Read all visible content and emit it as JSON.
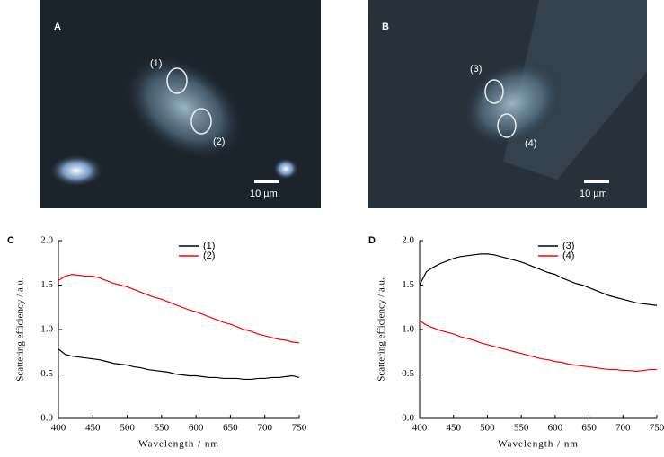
{
  "images": [
    {
      "panel_label": "A",
      "regions": [
        "(1)",
        "(2)"
      ],
      "scale_bar": "10 µm"
    },
    {
      "panel_label": "B",
      "regions": [
        "(3)",
        "(4)"
      ],
      "scale_bar": "10 µm"
    }
  ],
  "chart_data": [
    {
      "type": "line",
      "panel_label": "C",
      "x_label": "Wavelength / nm",
      "y_label": "Scattering efficiency / a.u.",
      "x": [
        400,
        410,
        420,
        430,
        440,
        450,
        460,
        470,
        480,
        490,
        500,
        510,
        520,
        530,
        540,
        550,
        560,
        570,
        580,
        590,
        600,
        610,
        620,
        630,
        640,
        650,
        660,
        670,
        680,
        690,
        700,
        710,
        720,
        730,
        740,
        750
      ],
      "xlim": [
        400,
        750
      ],
      "xticks": [
        400,
        450,
        500,
        550,
        600,
        650,
        700,
        750
      ],
      "ylim": [
        0,
        2
      ],
      "yticks": [
        {
          "value": 0,
          "label": "0.0"
        },
        {
          "value": 0.5,
          "label": "0.5"
        },
        {
          "value": 1,
          "label": "1.0"
        },
        {
          "value": 1.5,
          "label": "1.5"
        },
        {
          "value": 2,
          "label": "2.0"
        }
      ],
      "series": [
        {
          "name": "(1)",
          "color": "#000000",
          "values": [
            0.78,
            0.72,
            0.7,
            0.69,
            0.68,
            0.67,
            0.66,
            0.64,
            0.62,
            0.61,
            0.6,
            0.58,
            0.57,
            0.55,
            0.54,
            0.53,
            0.52,
            0.5,
            0.49,
            0.48,
            0.48,
            0.47,
            0.46,
            0.46,
            0.45,
            0.45,
            0.45,
            0.44,
            0.44,
            0.45,
            0.45,
            0.46,
            0.46,
            0.47,
            0.48,
            0.46
          ]
        },
        {
          "name": "(2)",
          "color": "#ff0000",
          "values": [
            1.55,
            1.6,
            1.62,
            1.61,
            1.6,
            1.6,
            1.58,
            1.55,
            1.52,
            1.5,
            1.48,
            1.45,
            1.42,
            1.39,
            1.36,
            1.34,
            1.31,
            1.28,
            1.25,
            1.22,
            1.2,
            1.17,
            1.14,
            1.11,
            1.08,
            1.06,
            1.03,
            1.0,
            0.98,
            0.95,
            0.93,
            0.91,
            0.89,
            0.88,
            0.86,
            0.85
          ]
        }
      ]
    },
    {
      "type": "line",
      "panel_label": "D",
      "x_label": "Wavelength / nm",
      "y_label": "Scattering efficiency / a.u.",
      "x": [
        400,
        410,
        420,
        430,
        440,
        450,
        460,
        470,
        480,
        490,
        500,
        510,
        520,
        530,
        540,
        550,
        560,
        570,
        580,
        590,
        600,
        610,
        620,
        630,
        640,
        650,
        660,
        670,
        680,
        690,
        700,
        710,
        720,
        730,
        740,
        750
      ],
      "xlim": [
        400,
        750
      ],
      "xticks": [
        400,
        450,
        500,
        550,
        600,
        650,
        700,
        750
      ],
      "ylim": [
        0,
        2
      ],
      "yticks": [
        {
          "value": 0,
          "label": "0.0"
        },
        {
          "value": 0.5,
          "label": "0.5"
        },
        {
          "value": 1,
          "label": "1.0"
        },
        {
          "value": 1.5,
          "label": "1.5"
        },
        {
          "value": 2,
          "label": "2.0"
        }
      ],
      "series": [
        {
          "name": "(3)",
          "color": "#000000",
          "values": [
            1.5,
            1.65,
            1.7,
            1.74,
            1.77,
            1.8,
            1.82,
            1.83,
            1.84,
            1.85,
            1.85,
            1.84,
            1.82,
            1.8,
            1.78,
            1.76,
            1.73,
            1.7,
            1.67,
            1.64,
            1.62,
            1.58,
            1.55,
            1.52,
            1.5,
            1.47,
            1.44,
            1.41,
            1.38,
            1.36,
            1.34,
            1.32,
            1.3,
            1.29,
            1.28,
            1.27
          ]
        },
        {
          "name": "(4)",
          "color": "#ff0000",
          "values": [
            1.1,
            1.05,
            1.02,
            0.99,
            0.97,
            0.95,
            0.92,
            0.9,
            0.88,
            0.85,
            0.83,
            0.81,
            0.79,
            0.77,
            0.75,
            0.73,
            0.71,
            0.69,
            0.67,
            0.66,
            0.64,
            0.63,
            0.61,
            0.6,
            0.59,
            0.58,
            0.57,
            0.56,
            0.55,
            0.55,
            0.54,
            0.54,
            0.53,
            0.54,
            0.55,
            0.55
          ]
        }
      ]
    }
  ]
}
